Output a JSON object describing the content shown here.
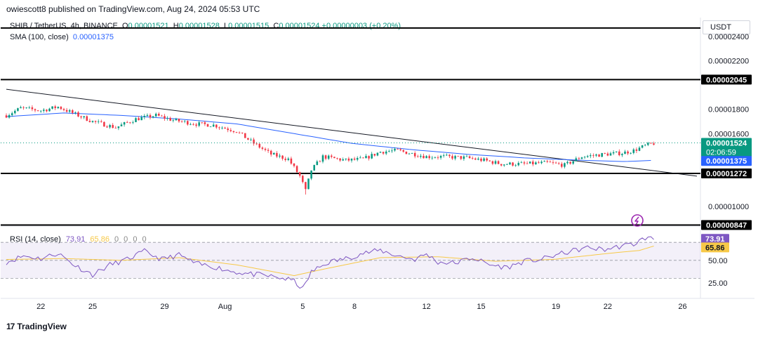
{
  "header": {
    "publisher": "owiescott8 published on TradingView.com, Aug 24, 2024 05:53 UTC"
  },
  "symbol": {
    "name": "SHIB / TetherUS, 4h, BINANCE",
    "open_label": "O",
    "open": "0.00001521",
    "high_label": "H",
    "high": "0.00001528",
    "low_label": "L",
    "low": "0.00001515",
    "close_label": "C",
    "close": "0.00001524",
    "change": "+0.00000003 (+0.20%)"
  },
  "currency_button": "USDT",
  "sma_legend": {
    "label": "SMA (100, close)",
    "value": "0.00001375"
  },
  "rsi_legend": {
    "label": "RSI (14, close)",
    "rsi": "73.91",
    "sma": "65.86",
    "extra": "0 0 0 0"
  },
  "footer": {
    "brand": "TradingView",
    "logo": "17"
  },
  "colors": {
    "up": "#089981",
    "down": "#f23645",
    "sma": "#2962ff",
    "rsi": "#7e57c2",
    "rsi_ma": "#f7c948",
    "level": "#000000"
  },
  "chart_data": {
    "type": "candlestick",
    "title": "SHIB / TetherUS, 4h, BINANCE",
    "price_axis": {
      "ylim": [
        8.5e-06,
        2.55e-05
      ],
      "ticks": [
        "0.00001000",
        "0.00001600",
        "0.00001800",
        "0.00002200",
        "0.00002400"
      ],
      "tick_values": [
        1e-05,
        1.6e-05,
        1.8e-05,
        2.2e-05,
        2.4e-05
      ]
    },
    "x_axis": {
      "tick_labels": [
        "22",
        "25",
        "29",
        "Aug",
        "5",
        "8",
        "12",
        "15",
        "19",
        "22",
        "26"
      ],
      "tick_index": [
        12,
        30,
        55,
        76,
        103,
        121,
        146,
        165,
        191,
        209,
        235
      ],
      "bar_count": 240
    },
    "horizontal_levels": [
      {
        "value": 2.045e-05,
        "label": "0.00002045"
      },
      {
        "value": 1.272e-05,
        "label": "0.00001272"
      },
      {
        "value": 8.47e-06,
        "label": "0.00000847"
      }
    ],
    "top_line": {
      "value": 2.47e-05
    },
    "trendline": {
      "start_index": 0,
      "start_value": 1.965e-05,
      "end_index": 240,
      "end_value": 1.25e-05
    },
    "current_price": {
      "value": 1.524e-05,
      "label": "0.00001524",
      "countdown": "02:06:59"
    },
    "sma_100": {
      "value": 1.375e-05,
      "label": "0.00001375"
    },
    "price_anchors": [
      [
        0,
        1.75e-05
      ],
      [
        5,
        1.81e-05
      ],
      [
        12,
        1.79e-05
      ],
      [
        18,
        1.82e-05
      ],
      [
        25,
        1.75e-05
      ],
      [
        30,
        1.7e-05
      ],
      [
        38,
        1.65e-05
      ],
      [
        45,
        1.72e-05
      ],
      [
        52,
        1.75e-05
      ],
      [
        58,
        1.71e-05
      ],
      [
        66,
        1.68e-05
      ],
      [
        72,
        1.67e-05
      ],
      [
        80,
        1.62e-05
      ],
      [
        86,
        1.52e-05
      ],
      [
        92,
        1.43e-05
      ],
      [
        98,
        1.39e-05
      ],
      [
        102,
        1.25e-05
      ],
      [
        104,
        1.13e-05
      ],
      [
        106,
        1.3e-05
      ],
      [
        110,
        1.41e-05
      ],
      [
        118,
        1.38e-05
      ],
      [
        124,
        1.39e-05
      ],
      [
        130,
        1.45e-05
      ],
      [
        136,
        1.46e-05
      ],
      [
        142,
        1.43e-05
      ],
      [
        146,
        1.41e-05
      ],
      [
        152,
        1.41e-05
      ],
      [
        160,
        1.4e-05
      ],
      [
        166,
        1.38e-05
      ],
      [
        172,
        1.35e-05
      ],
      [
        180,
        1.35e-05
      ],
      [
        188,
        1.36e-05
      ],
      [
        194,
        1.34e-05
      ],
      [
        200,
        1.41e-05
      ],
      [
        208,
        1.43e-05
      ],
      [
        214,
        1.44e-05
      ],
      [
        218,
        1.46e-05
      ],
      [
        222,
        1.5e-05
      ],
      [
        225,
        1.52e-05
      ]
    ],
    "sma_anchors": [
      [
        0,
        1.74e-05
      ],
      [
        20,
        1.77e-05
      ],
      [
        40,
        1.75e-05
      ],
      [
        60,
        1.72e-05
      ],
      [
        80,
        1.68e-05
      ],
      [
        100,
        1.6e-05
      ],
      [
        120,
        1.52e-05
      ],
      [
        140,
        1.47e-05
      ],
      [
        160,
        1.43e-05
      ],
      [
        180,
        1.4e-05
      ],
      [
        200,
        1.38e-05
      ],
      [
        215,
        1.37e-05
      ],
      [
        225,
        1.38e-05
      ]
    ],
    "rsi": {
      "ylim": [
        10,
        85
      ],
      "ticks": [
        "25.00",
        "50.00"
      ],
      "tick_values": [
        25,
        50
      ],
      "bands": [
        30,
        50,
        70
      ],
      "current": {
        "value": 73.91,
        "label": "73.91"
      },
      "ma_current": {
        "value": 65.86,
        "label": "65.86"
      },
      "anchors": [
        [
          0,
          48
        ],
        [
          6,
          55
        ],
        [
          12,
          52
        ],
        [
          18,
          58
        ],
        [
          24,
          44
        ],
        [
          30,
          34
        ],
        [
          36,
          45
        ],
        [
          42,
          51
        ],
        [
          48,
          60
        ],
        [
          54,
          51
        ],
        [
          60,
          56
        ],
        [
          66,
          46
        ],
        [
          72,
          43
        ],
        [
          78,
          38
        ],
        [
          84,
          35
        ],
        [
          90,
          33
        ],
        [
          96,
          30
        ],
        [
          100,
          27
        ],
        [
          103,
          18
        ],
        [
          106,
          37
        ],
        [
          112,
          48
        ],
        [
          118,
          52
        ],
        [
          124,
          58
        ],
        [
          130,
          61
        ],
        [
          136,
          55
        ],
        [
          142,
          51
        ],
        [
          146,
          57
        ],
        [
          150,
          48
        ],
        [
          156,
          47
        ],
        [
          162,
          53
        ],
        [
          168,
          45
        ],
        [
          174,
          42
        ],
        [
          180,
          49
        ],
        [
          186,
          51
        ],
        [
          190,
          55
        ],
        [
          196,
          60
        ],
        [
          202,
          64
        ],
        [
          208,
          62
        ],
        [
          214,
          66
        ],
        [
          218,
          68
        ],
        [
          222,
          75
        ],
        [
          225,
          73.91
        ]
      ],
      "ma_anchors": [
        [
          0,
          51
        ],
        [
          20,
          52
        ],
        [
          40,
          50
        ],
        [
          60,
          53
        ],
        [
          80,
          45
        ],
        [
          100,
          33
        ],
        [
          110,
          40
        ],
        [
          130,
          53
        ],
        [
          150,
          54
        ],
        [
          170,
          49
        ],
        [
          190,
          51
        ],
        [
          210,
          58
        ],
        [
          220,
          61
        ],
        [
          225,
          65.86
        ]
      ]
    }
  }
}
